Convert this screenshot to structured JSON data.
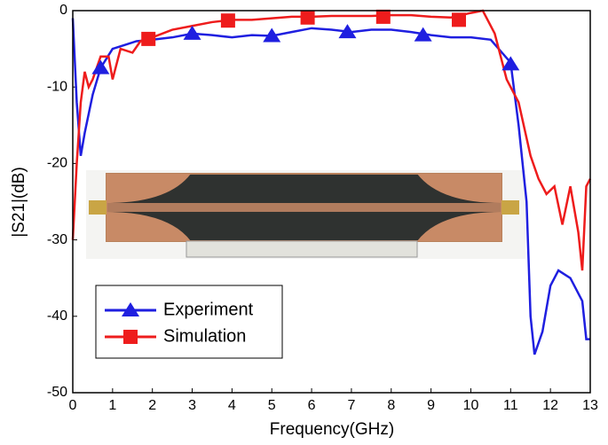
{
  "chart_data": {
    "type": "line",
    "x_label": "Frequency(GHz)",
    "y_label": "|S21|(dB)",
    "xlim": [
      0,
      13
    ],
    "ylim": [
      -50,
      0
    ],
    "xticks": [
      0,
      1,
      2,
      3,
      4,
      5,
      6,
      7,
      8,
      9,
      10,
      11,
      12,
      13
    ],
    "yticks": [
      0,
      -10,
      -20,
      -30,
      -40,
      -50
    ],
    "legend": "lower-left",
    "series": [
      {
        "name": "Experiment",
        "color": "#1f1fe0",
        "marker": "triangle",
        "x": [
          0,
          0.1,
          0.2,
          0.3,
          0.5,
          0.7,
          1.0,
          1.3,
          1.6,
          2.0,
          2.5,
          3.0,
          3.5,
          4.0,
          4.5,
          5.0,
          5.5,
          6.0,
          6.5,
          7.0,
          7.5,
          8.0,
          8.5,
          9.0,
          9.5,
          10.0,
          10.5,
          11.0,
          11.2,
          11.4,
          11.5,
          11.6,
          11.8,
          12.0,
          12.2,
          12.5,
          12.8,
          12.9,
          13.0
        ],
        "values": [
          -1,
          -12,
          -19,
          -16,
          -11,
          -7.5,
          -5,
          -4.5,
          -4,
          -3.8,
          -3.5,
          -3,
          -3.2,
          -3.5,
          -3.2,
          -3.3,
          -2.8,
          -2.3,
          -2.5,
          -2.8,
          -2.5,
          -2.5,
          -2.8,
          -3.2,
          -3.5,
          -3.5,
          -3.8,
          -6.8,
          -15,
          -25,
          -40,
          -45,
          -42,
          -36,
          -34,
          -35,
          -38,
          -43,
          -43
        ],
        "markers": {
          "x": [
            0.7,
            3,
            5,
            6.9,
            8.8,
            11
          ],
          "values": [
            -7.5,
            -3,
            -3.3,
            -2.8,
            -3.2,
            -7
          ]
        }
      },
      {
        "name": "Simulation",
        "color": "#ee1c1c",
        "marker": "square",
        "x": [
          0,
          0.1,
          0.2,
          0.3,
          0.4,
          0.5,
          0.7,
          0.9,
          1.0,
          1.2,
          1.5,
          1.7,
          2.0,
          2.5,
          3.0,
          3.5,
          4.0,
          4.5,
          5.0,
          5.5,
          6.0,
          6.5,
          7.0,
          7.5,
          8.0,
          8.5,
          9.0,
          9.5,
          10.0,
          10.3,
          10.6,
          10.9,
          11.2,
          11.5,
          11.7,
          11.9,
          12.1,
          12.3,
          12.5,
          12.7,
          12.8,
          12.9,
          13.0
        ],
        "values": [
          -30,
          -20,
          -12,
          -8,
          -10,
          -9,
          -6,
          -6,
          -9,
          -5,
          -5.5,
          -4,
          -3.5,
          -2.5,
          -2,
          -1.5,
          -1.2,
          -1.2,
          -1.0,
          -0.8,
          -0.8,
          -0.7,
          -0.7,
          -0.7,
          -0.6,
          -0.6,
          -0.8,
          -0.9,
          -0.3,
          0,
          -3,
          -9,
          -12,
          -19,
          -22,
          -24,
          -23,
          -28,
          -23,
          -29,
          -34,
          -23,
          -22
        ],
        "markers": {
          "x": [
            1.9,
            3.9,
            5.9,
            7.8,
            9.7
          ],
          "values": [
            -3.7,
            -1.3,
            -0.9,
            -0.8,
            -1.2
          ]
        }
      }
    ]
  }
}
